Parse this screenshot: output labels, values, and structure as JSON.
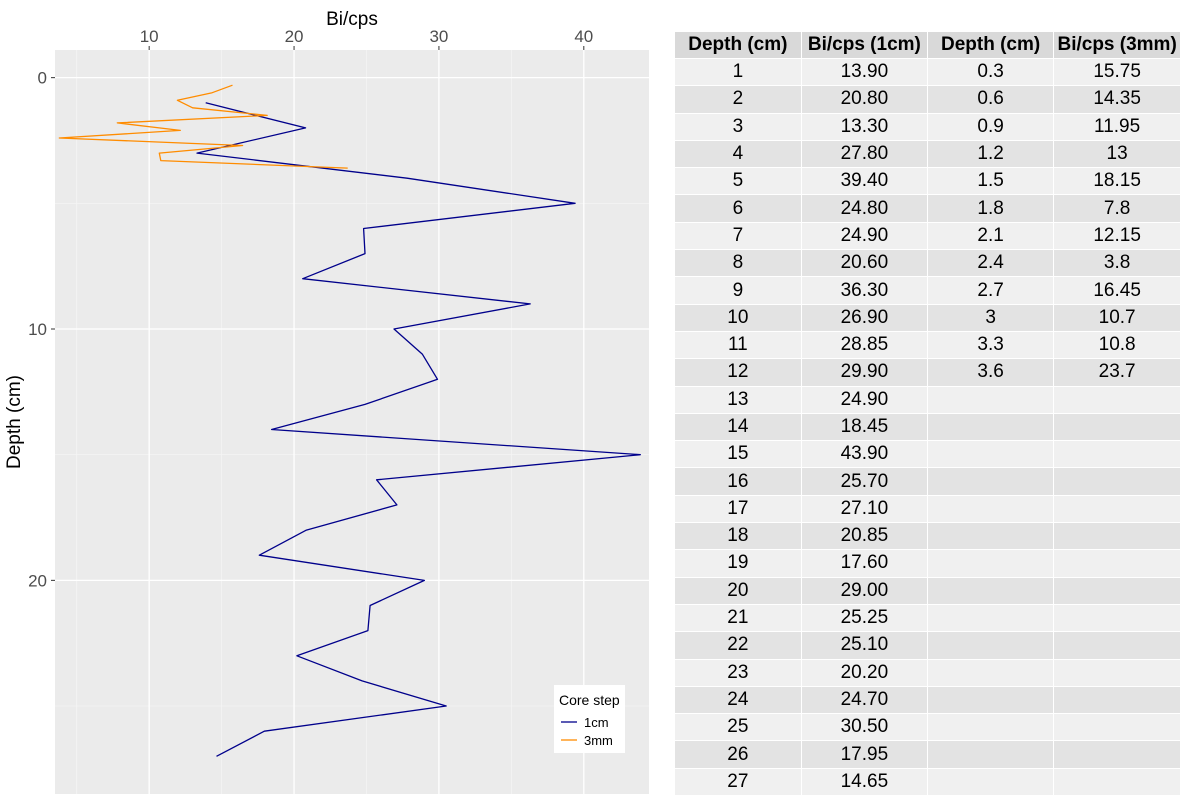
{
  "chart_data": {
    "type": "line",
    "orientation": "depth-profile",
    "xlabel": "Bi/cps",
    "ylabel": "Depth (cm)",
    "x_ticks": [
      10,
      20,
      30,
      40
    ],
    "y_ticks": [
      0,
      10,
      20
    ],
    "xlim": [
      3.5,
      44.5
    ],
    "ylim_reversed": [
      28.5,
      -1.1
    ],
    "grid": true,
    "legend_position": "bottom-right",
    "legend_title": "Core step",
    "series": [
      {
        "name": "1cm",
        "color": "#00008b",
        "x": [
          13.9,
          20.8,
          13.3,
          27.8,
          39.4,
          24.8,
          24.9,
          20.6,
          36.3,
          26.9,
          28.85,
          29.9,
          24.9,
          18.45,
          43.9,
          25.7,
          27.1,
          20.85,
          17.6,
          29.0,
          25.25,
          25.1,
          20.2,
          24.7,
          30.5,
          17.95,
          14.65
        ],
        "y": [
          1,
          2,
          3,
          4,
          5,
          6,
          7,
          8,
          9,
          10,
          11,
          12,
          13,
          14,
          15,
          16,
          17,
          18,
          19,
          20,
          21,
          22,
          23,
          24,
          25,
          26,
          27
        ]
      },
      {
        "name": "3mm",
        "color": "#ff8c00",
        "x": [
          15.75,
          14.35,
          11.95,
          13,
          18.15,
          7.8,
          12.15,
          3.8,
          16.45,
          10.7,
          10.8,
          23.7
        ],
        "y": [
          0.3,
          0.6,
          0.9,
          1.2,
          1.5,
          1.8,
          2.1,
          2.4,
          2.7,
          3,
          3.3,
          3.6
        ]
      }
    ]
  },
  "table": {
    "headers": [
      "Depth (cm)",
      "Bi/cps (1cm)",
      "Depth (cm)",
      "Bi/cps (3mm)"
    ],
    "rows": [
      [
        "1",
        "13.90",
        "0.3",
        "15.75"
      ],
      [
        "2",
        "20.80",
        "0.6",
        "14.35"
      ],
      [
        "3",
        "13.30",
        "0.9",
        "11.95"
      ],
      [
        "4",
        "27.80",
        "1.2",
        "13"
      ],
      [
        "5",
        "39.40",
        "1.5",
        "18.15"
      ],
      [
        "6",
        "24.80",
        "1.8",
        "7.8"
      ],
      [
        "7",
        "24.90",
        "2.1",
        "12.15"
      ],
      [
        "8",
        "20.60",
        "2.4",
        "3.8"
      ],
      [
        "9",
        "36.30",
        "2.7",
        "16.45"
      ],
      [
        "10",
        "26.90",
        "3",
        "10.7"
      ],
      [
        "11",
        "28.85",
        "3.3",
        "10.8"
      ],
      [
        "12",
        "29.90",
        "3.6",
        "23.7"
      ],
      [
        "13",
        "24.90",
        "",
        ""
      ],
      [
        "14",
        "18.45",
        "",
        ""
      ],
      [
        "15",
        "43.90",
        "",
        ""
      ],
      [
        "16",
        "25.70",
        "",
        ""
      ],
      [
        "17",
        "27.10",
        "",
        ""
      ],
      [
        "18",
        "20.85",
        "",
        ""
      ],
      [
        "19",
        "17.60",
        "",
        ""
      ],
      [
        "20",
        "29.00",
        "",
        ""
      ],
      [
        "21",
        "25.25",
        "",
        ""
      ],
      [
        "22",
        "25.10",
        "",
        ""
      ],
      [
        "23",
        "20.20",
        "",
        ""
      ],
      [
        "24",
        "24.70",
        "",
        ""
      ],
      [
        "25",
        "30.50",
        "",
        ""
      ],
      [
        "26",
        "17.95",
        "",
        ""
      ],
      [
        "27",
        "14.65",
        "",
        ""
      ]
    ]
  }
}
